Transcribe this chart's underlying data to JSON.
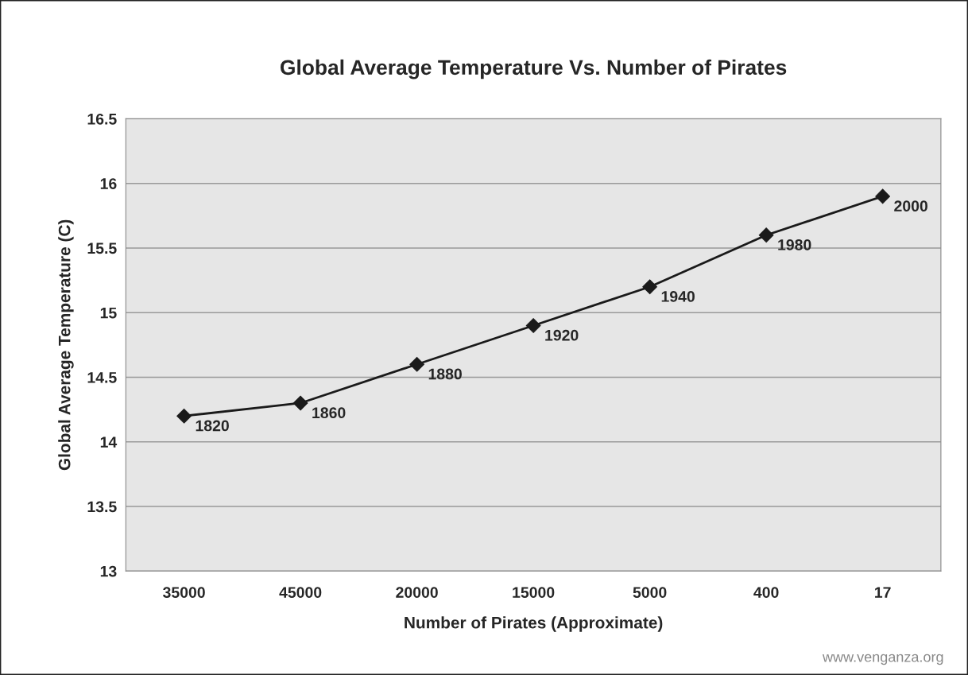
{
  "chart_data": {
    "type": "line",
    "title": "Global Average Temperature Vs. Number of Pirates",
    "xlabel": "Number of Pirates (Approximate)",
    "ylabel": "Global Average Temperature (C)",
    "categories": [
      "35000",
      "45000",
      "20000",
      "15000",
      "5000",
      "400",
      "17"
    ],
    "series": [
      {
        "color": "#1a1a1a",
        "values": [
          14.2,
          14.3,
          14.6,
          14.9,
          15.2,
          15.6,
          15.9
        ]
      }
    ],
    "ylim": [
      13,
      16.5
    ],
    "yticks": [
      13,
      13.5,
      14,
      14.5,
      15,
      15.5,
      16,
      16.5
    ],
    "grid": "y",
    "marker": "diamond",
    "line_style": "solid",
    "annotations": [
      {
        "text": "1820",
        "x": "35000",
        "y": 14.2
      },
      {
        "text": "1860",
        "x": "45000",
        "y": 14.3
      },
      {
        "text": "1880",
        "x": "20000",
        "y": 14.6
      },
      {
        "text": "1920",
        "x": "15000",
        "y": 14.9
      },
      {
        "text": "1940",
        "x": "5000",
        "y": 15.2
      },
      {
        "text": "1980",
        "x": "400",
        "y": 15.6
      },
      {
        "text": "2000",
        "x": "17",
        "y": 15.9
      },
      "www.venganza.org"
    ]
  }
}
